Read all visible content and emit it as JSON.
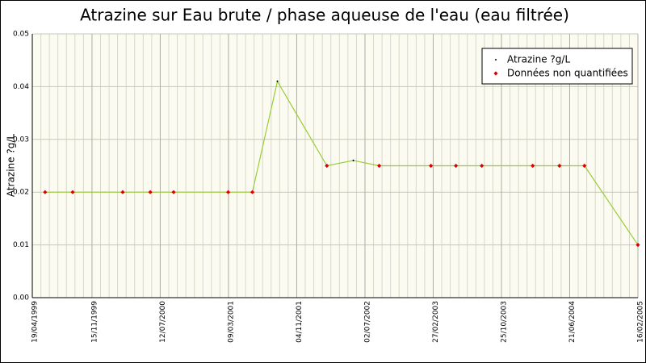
{
  "chart_data": {
    "type": "line",
    "title": "Atrazine sur Eau brute / phase aqueuse de l'eau (eau filtrée)",
    "y_label": "Atrazine ?g/L",
    "x": [
      "03/06/1999",
      "08/09/1999",
      "02/03/2000",
      "07/06/2000",
      "28/08/2000",
      "08/03/2001",
      "01/06/2001",
      "28/08/2001",
      "18/02/2002",
      "22/05/2002",
      "21/08/2002",
      "19/02/2003",
      "18/05/2003",
      "17/08/2003",
      "12/02/2004",
      "16/05/2004",
      "12/08/2004",
      "16/02/2005"
    ],
    "series": [
      {
        "name": "Atrazine ?g/L",
        "color": "#000000",
        "line_color": "#99cc33",
        "values": [
          0.02,
          0.02,
          0.02,
          0.02,
          0.02,
          0.02,
          0.02,
          0.041,
          0.025,
          0.026,
          0.025,
          0.025,
          0.025,
          0.025,
          0.025,
          0.025,
          0.025,
          0.01
        ]
      },
      {
        "name": "Données non quantifiées",
        "color": "#dd0000",
        "values": [
          0.02,
          0.02,
          0.02,
          0.02,
          0.02,
          0.02,
          0.02,
          null,
          0.025,
          null,
          0.025,
          0.025,
          0.025,
          0.025,
          0.025,
          0.025,
          0.025,
          0.01
        ]
      }
    ],
    "xlim": [
      "19/04/1999",
      "16/02/2005"
    ],
    "xticks": [
      "19/04/1999",
      "15/11/1999",
      "12/07/2000",
      "09/03/2001",
      "04/11/2001",
      "02/07/2002",
      "27/02/2003",
      "25/10/2003",
      "21/06/2004",
      "16/02/2005"
    ],
    "ylim": [
      0,
      0.05
    ],
    "yticks": [
      {
        "value": 0,
        "label": "0.00"
      },
      {
        "value": 0.01,
        "label": "0.01"
      },
      {
        "value": 0.02,
        "label": "0.02"
      },
      {
        "value": 0.03,
        "label": "0.03"
      },
      {
        "value": 0.04,
        "label": "0.04"
      },
      {
        "value": 0.05,
        "label": "0.05"
      }
    ],
    "grid": true
  }
}
